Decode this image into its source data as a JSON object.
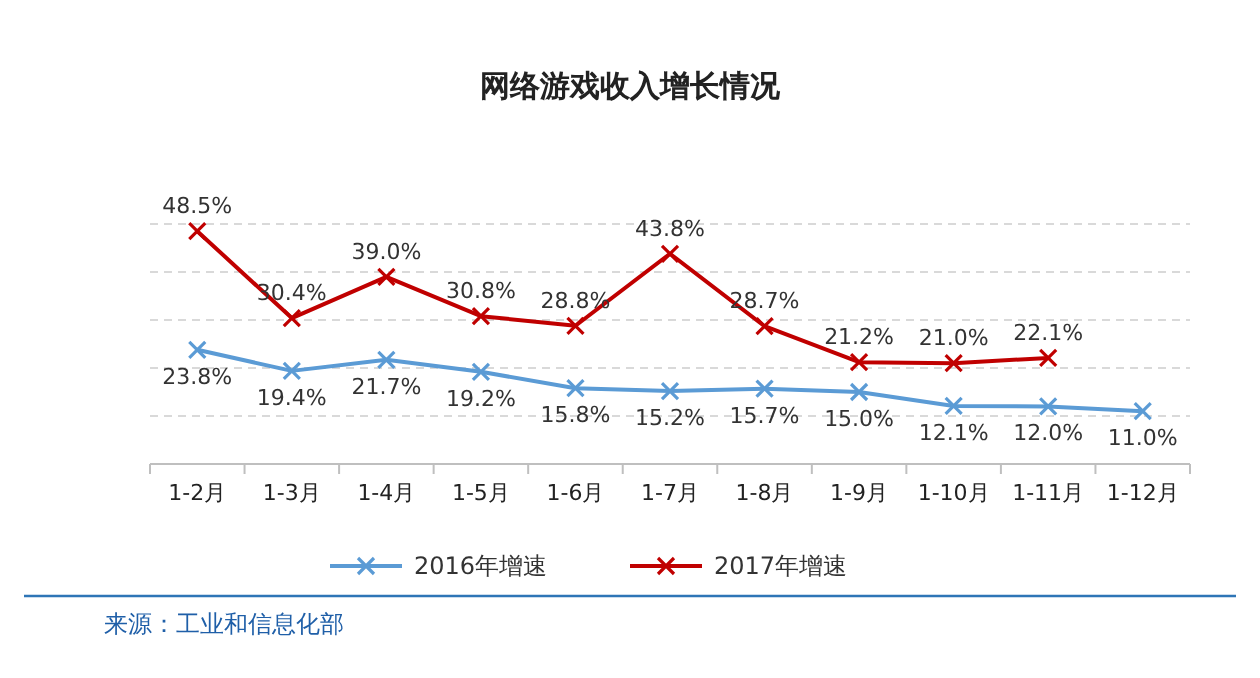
{
  "chart_data": {
    "type": "line",
    "title": "网络游戏收入增长情况",
    "categories": [
      "1-2月",
      "1-3月",
      "1-4月",
      "1-5月",
      "1-6月",
      "1-7月",
      "1-8月",
      "1-9月",
      "1-10月",
      "1-11月",
      "1-12月"
    ],
    "series": [
      {
        "name": "2016年增速",
        "color": "#5b9bd5",
        "values": [
          23.8,
          19.4,
          21.7,
          19.2,
          15.8,
          15.2,
          15.7,
          15.0,
          12.1,
          12.0,
          11.0
        ],
        "value_labels": [
          "23.8%",
          "19.4%",
          "21.7%",
          "19.2%",
          "15.8%",
          "15.2%",
          "15.7%",
          "15.0%",
          "12.1%",
          "12.0%",
          "11.0%"
        ]
      },
      {
        "name": "2017年增速",
        "color": "#c00000",
        "values": [
          48.5,
          30.4,
          39.0,
          30.8,
          28.8,
          43.8,
          28.7,
          21.2,
          21.0,
          22.1,
          null
        ],
        "value_labels": [
          "48.5%",
          "30.4%",
          "39.0%",
          "30.8%",
          "28.8%",
          "43.8%",
          "28.7%",
          "21.2%",
          "21.0%",
          "22.1%",
          null
        ]
      }
    ],
    "ylim": [
      0,
      50
    ],
    "yticks": [
      {
        "value": 10,
        "label": null
      },
      {
        "value": 20,
        "label": null
      },
      {
        "value": 30,
        "label": null
      },
      {
        "value": 40,
        "label": null
      },
      {
        "value": 50,
        "label": null
      }
    ],
    "grid": "y",
    "marker": "cross",
    "line_style": "solid",
    "legend": "bottom",
    "tick_labels": "x",
    "annotations": [
      "来源：工业和信息化部"
    ]
  }
}
